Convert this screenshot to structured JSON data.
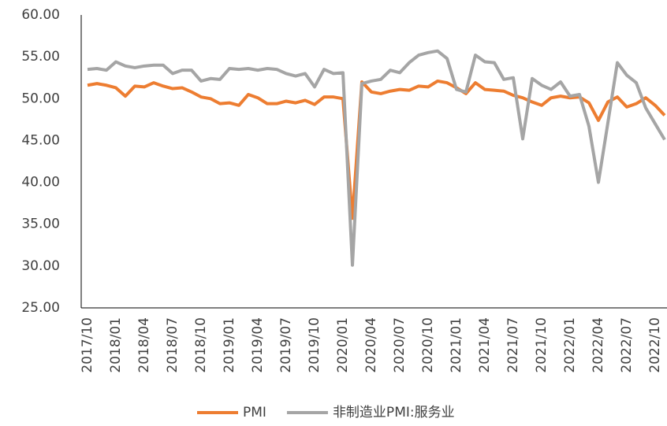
{
  "chart_data": {
    "type": "line",
    "categories": [
      "2017/10",
      null,
      null,
      "2018/01",
      null,
      null,
      "2018/04",
      null,
      null,
      "2018/07",
      null,
      null,
      "2018/10",
      null,
      null,
      "2019/01",
      null,
      null,
      "2019/04",
      null,
      null,
      "2019/07",
      null,
      null,
      "2019/10",
      null,
      null,
      "2020/01",
      null,
      null,
      "2020/04",
      null,
      null,
      "2020/07",
      null,
      null,
      "2020/10",
      null,
      null,
      "2021/01",
      null,
      null,
      "2021/04",
      null,
      null,
      "2021/07",
      null,
      null,
      "2021/10",
      null,
      null,
      "2022/01",
      null,
      null,
      "2022/04",
      null,
      null,
      "2022/07",
      null,
      null,
      "2022/10",
      null
    ],
    "series": [
      {
        "name": "PMI",
        "color": "#ED7D31",
        "values": [
          51.6,
          51.8,
          51.6,
          51.3,
          50.3,
          51.5,
          51.4,
          51.9,
          51.5,
          51.2,
          51.3,
          50.8,
          50.2,
          50.0,
          49.4,
          49.5,
          49.2,
          50.5,
          50.1,
          49.4,
          49.4,
          49.7,
          49.5,
          49.8,
          49.3,
          50.2,
          50.2,
          50.0,
          35.7,
          52.0,
          50.8,
          50.6,
          50.9,
          51.1,
          51.0,
          51.5,
          51.4,
          52.1,
          51.9,
          51.3,
          50.6,
          51.9,
          51.1,
          51.0,
          50.9,
          50.4,
          50.1,
          49.6,
          49.2,
          50.1,
          50.3,
          50.1,
          50.2,
          49.5,
          47.4,
          49.6,
          50.2,
          49.0,
          49.4,
          50.1,
          49.2,
          48.0
        ]
      },
      {
        "name": "非制造业PMI:服务业",
        "color": "#A5A5A5",
        "values": [
          53.5,
          53.6,
          53.4,
          54.4,
          53.9,
          53.7,
          53.9,
          54.0,
          54.0,
          53.0,
          53.4,
          53.4,
          52.1,
          52.4,
          52.3,
          53.6,
          53.5,
          53.6,
          53.4,
          53.6,
          53.5,
          53.0,
          52.7,
          53.0,
          51.4,
          53.5,
          53.0,
          53.1,
          30.1,
          51.8,
          52.1,
          52.3,
          53.4,
          53.1,
          54.3,
          55.2,
          55.5,
          55.7,
          54.8,
          51.1,
          50.8,
          55.2,
          54.4,
          54.3,
          52.3,
          52.5,
          45.2,
          52.4,
          51.6,
          51.1,
          52.0,
          50.3,
          50.5,
          46.7,
          40.0,
          47.1,
          54.3,
          52.8,
          51.9,
          48.9,
          47.0,
          45.1
        ]
      }
    ],
    "ylim": [
      25,
      60
    ],
    "yticks": [
      {
        "value": 25,
        "label": "25.00"
      },
      {
        "value": 30,
        "label": "30.00"
      },
      {
        "value": 35,
        "label": "35.00"
      },
      {
        "value": 40,
        "label": "40.00"
      },
      {
        "value": 45,
        "label": "45.00"
      },
      {
        "value": 50,
        "label": "50.00"
      },
      {
        "value": 55,
        "label": "55.00"
      },
      {
        "value": 60,
        "label": "60.00"
      }
    ],
    "grid": false,
    "legend": "bottom"
  }
}
